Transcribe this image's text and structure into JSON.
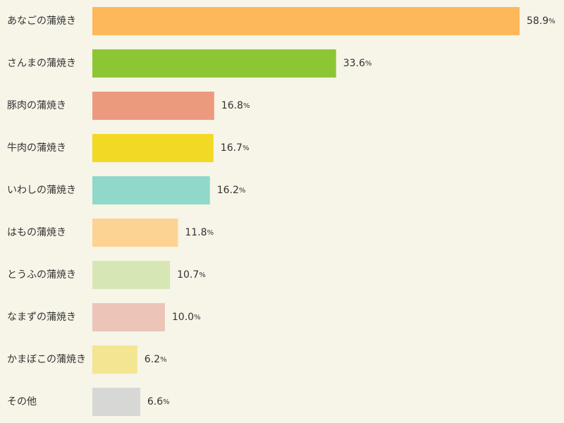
{
  "chart_data": {
    "type": "bar",
    "orientation": "horizontal",
    "title": "",
    "xlabel": "",
    "ylabel": "",
    "unit": "%",
    "xlim": [
      0,
      58.9
    ],
    "grid": false,
    "legend": "none",
    "categories": [
      "あなごの蒲焼き",
      "さんまの蒲焼き",
      "豚肉の蒲焼き",
      "牛肉の蒲焼き",
      "いわしの蒲焼き",
      "はもの蒲焼き",
      "とうふの蒲焼き",
      "なまずの蒲焼き",
      "かまぼこの蒲焼き",
      "その他"
    ],
    "values": [
      58.9,
      33.6,
      16.8,
      16.7,
      16.2,
      11.8,
      10.7,
      10.0,
      6.2,
      6.6
    ],
    "value_labels": [
      "58.9",
      "33.6",
      "16.8",
      "16.7",
      "16.2",
      "11.8",
      "10.7",
      "10.0",
      "6.2",
      "6.6"
    ],
    "colors": [
      "#fdb85a",
      "#8dc635",
      "#ec9a7e",
      "#f2d923",
      "#90d8ca",
      "#fdd394",
      "#d6e7b5",
      "#ecc4b8",
      "#f3e592",
      "#d7d8d6"
    ],
    "background_color": "#f7f4e8"
  }
}
